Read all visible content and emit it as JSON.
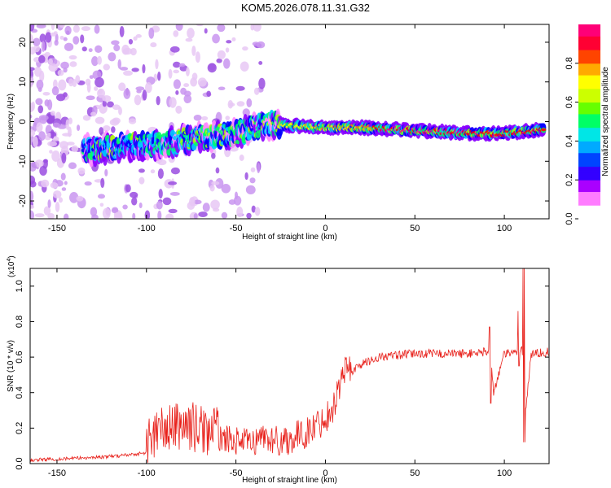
{
  "title": "KOM5.2026.078.11.31.G32",
  "chart_data": [
    {
      "type": "heatmap",
      "title": "KOM5.2026.078.11.31.G32",
      "xlabel": "Height of straight line (km)",
      "ylabel": "Frequency (Hz)",
      "xlim": [
        -165,
        125
      ],
      "ylim": [
        -24.5,
        24.5
      ],
      "xticks": [
        -150,
        -100,
        -50,
        0,
        50,
        100
      ],
      "yticks": [
        -20,
        -10,
        0,
        10,
        20
      ],
      "colorbar": {
        "label": "Normalized spectral amplitude",
        "range": [
          0,
          1
        ],
        "ticks": [
          "0.0",
          "0.2",
          "0.4",
          "0.6",
          "0.8"
        ],
        "colormap": [
          "#ffffff",
          "#ff88ff",
          "#8800ff",
          "#0000ff",
          "#00ccff",
          "#00ff66",
          "#aaff00",
          "#ffff00",
          "#ff8800",
          "#ff0000",
          "#ff0088"
        ]
      },
      "ridge": {
        "x": [
          -130,
          -110,
          -90,
          -70,
          -50,
          -40,
          -30,
          -20,
          0,
          20,
          40,
          60,
          80,
          100,
          120
        ],
        "freq": [
          -7,
          -6,
          -5.5,
          -4,
          -3,
          -1.5,
          -0.5,
          -1,
          -1.5,
          -1.5,
          -2,
          -2.5,
          -3,
          -3,
          -2
        ],
        "peak_amplitude": [
          0.3,
          0.35,
          0.45,
          0.5,
          0.5,
          0.45,
          0.6,
          0.7,
          0.7,
          0.75,
          0.95,
          0.95,
          0.9,
          0.85,
          0.9
        ]
      }
    },
    {
      "type": "line",
      "xlabel": "Height of straight line (km)",
      "ylabel": "SNR (10 * v/v)",
      "y_multiplier": "(x10",
      "y_multiplier_exp": "4",
      "y_multiplier_close": ")",
      "xlim": [
        -165,
        125
      ],
      "ylim": [
        0,
        1.1
      ],
      "xticks": [
        -150,
        -100,
        -50,
        0,
        50,
        100
      ],
      "yticks": [
        0.0,
        0.2,
        0.4,
        0.6,
        0.8,
        1.0
      ],
      "series": [
        {
          "name": "SNR",
          "color": "#e8201a",
          "x": [
            -165,
            -140,
            -120,
            -100,
            -95,
            -90,
            -85,
            -80,
            -75,
            -70,
            -60,
            -50,
            -40,
            -35,
            -30,
            -20,
            -10,
            0,
            5,
            10,
            15,
            20,
            25,
            30,
            40,
            50,
            60,
            70,
            80,
            90,
            92,
            94,
            100,
            105,
            110,
            112,
            115,
            125
          ],
          "values": [
            0.01,
            0.02,
            0.03,
            0.05,
            0.1,
            0.12,
            0.13,
            0.15,
            0.14,
            0.12,
            0.11,
            0.09,
            0.08,
            0.12,
            0.09,
            0.1,
            0.14,
            0.22,
            0.3,
            0.48,
            0.52,
            0.56,
            0.58,
            0.6,
            0.61,
            0.62,
            0.62,
            0.62,
            0.62,
            0.63,
            0.66,
            0.4,
            0.62,
            0.62,
            0.65,
            0.3,
            0.62,
            0.63
          ]
        }
      ],
      "spikes": [
        {
          "x": 92,
          "top": 0.77,
          "bottom": 0.34
        },
        {
          "x": 108,
          "top": 0.86,
          "bottom": 0.55
        },
        {
          "x": 111,
          "top": 1.1,
          "bottom": 0.12
        }
      ]
    }
  ]
}
